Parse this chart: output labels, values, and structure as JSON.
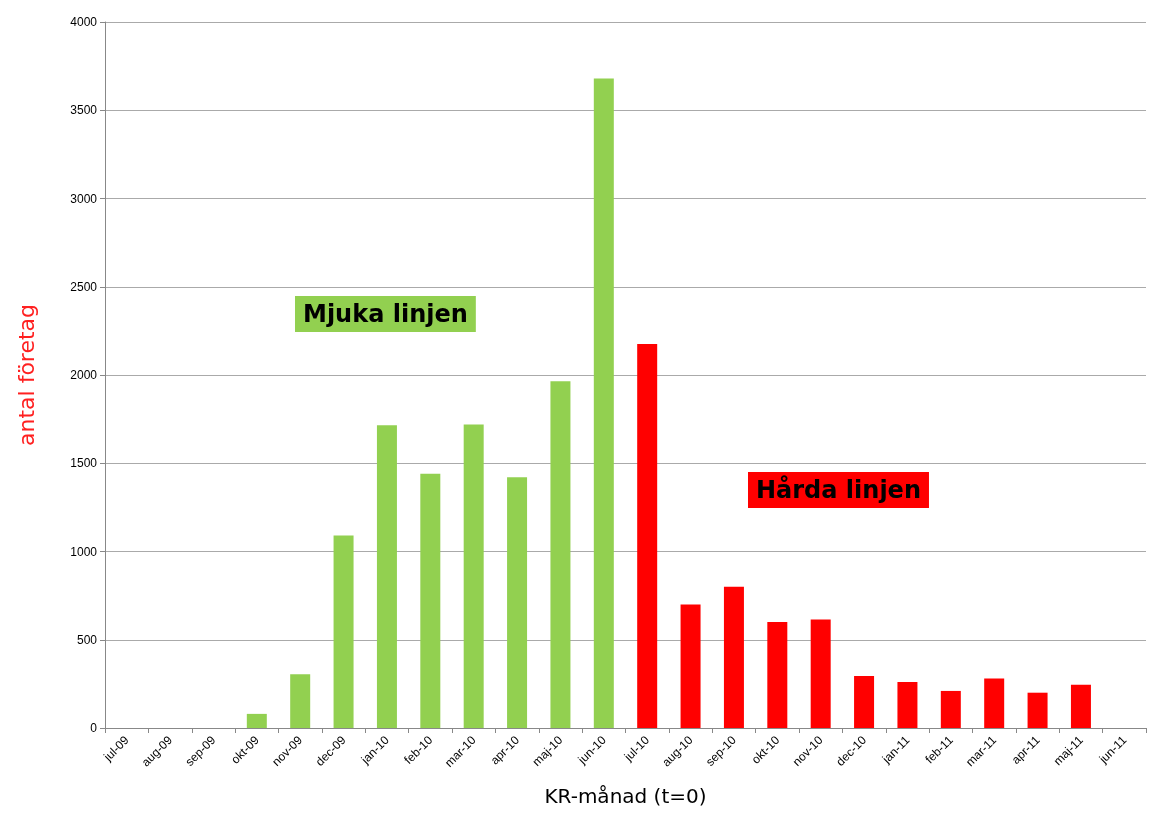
{
  "chart_data": {
    "type": "bar",
    "xlabel": "KR-månad (t=0)",
    "ylabel": "antal företag",
    "categories": [
      "jul-09",
      "aug-09",
      "sep-09",
      "okt-09",
      "nov-09",
      "dec-09",
      "jan-10",
      "feb-10",
      "mar-10",
      "apr-10",
      "maj-10",
      "jun-10",
      "jul-10",
      "aug-10",
      "sep-10",
      "okt-10",
      "nov-10",
      "dec-10",
      "jan-11",
      "feb-11",
      "mar-11",
      "apr-11",
      "maj-11",
      "jun-11"
    ],
    "series": [
      {
        "name": "Mjuka linjen",
        "color": "#92d050",
        "values": [
          null,
          null,
          null,
          80,
          305,
          1090,
          1715,
          1440,
          1720,
          1420,
          1965,
          3680,
          null,
          null,
          null,
          null,
          null,
          null,
          null,
          null,
          null,
          null,
          null,
          null
        ]
      },
      {
        "name": "Hårda linjen",
        "color": "#ff0000",
        "values": [
          null,
          null,
          null,
          null,
          null,
          null,
          null,
          null,
          null,
          null,
          null,
          null,
          2175,
          700,
          800,
          600,
          615,
          295,
          260,
          210,
          280,
          200,
          245,
          null
        ]
      }
    ],
    "ylim": [
      0,
      4000
    ],
    "yticks": [
      0,
      500,
      1000,
      1500,
      2000,
      2500,
      3000,
      3500,
      4000
    ],
    "grid": "y",
    "legend": false
  }
}
